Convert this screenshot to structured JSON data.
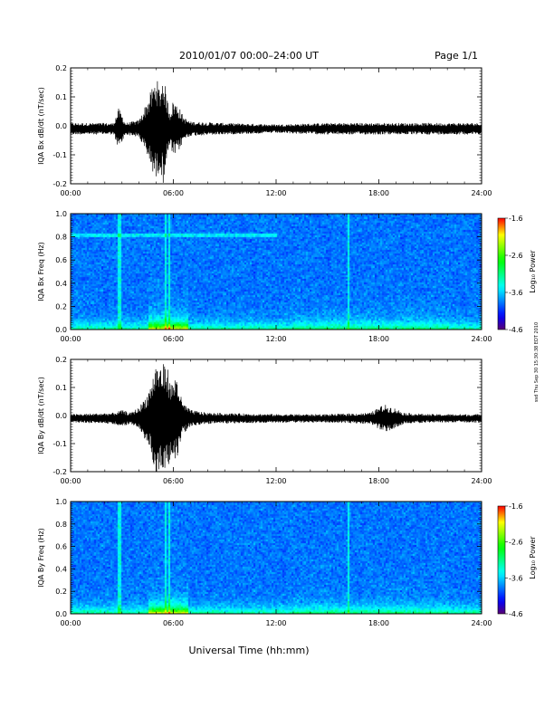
{
  "header": {
    "title": "2010/01/07  00:00–24:00 UT",
    "page": "Page 1/1"
  },
  "side_note": "ssd Thu Sep 30 15:30:38 EDT 2010",
  "xlabel": "Universal Time (hh:mm)",
  "chart_data": [
    {
      "type": "line",
      "panel": "Bx waveform",
      "ylabel": "IQA Bx dB/dt (nT/sec)",
      "xlim": [
        0,
        24
      ],
      "ylim": [
        -0.2,
        0.2
      ],
      "yticks": [
        "-0.2",
        "-0.1",
        "0.0",
        "0.1",
        "0.2"
      ],
      "xticks": [
        "00:00",
        "06:00",
        "12:00",
        "18:00",
        "24:00"
      ],
      "baseline": -0.01,
      "series": [
        {
          "envelope_x": [
            0,
            2.5,
            2.8,
            3.0,
            3.2,
            4.0,
            4.5,
            4.8,
            5.0,
            5.2,
            5.4,
            5.6,
            5.8,
            6.0,
            6.3,
            6.6,
            7.0,
            9,
            12,
            15,
            18,
            21,
            24
          ],
          "envelope_amp": [
            0.02,
            0.02,
            0.07,
            0.05,
            0.02,
            0.03,
            0.1,
            0.15,
            0.18,
            0.14,
            0.19,
            0.12,
            0.06,
            0.1,
            0.08,
            0.04,
            0.025,
            0.02,
            0.015,
            0.02,
            0.02,
            0.02,
            0.02
          ]
        }
      ]
    },
    {
      "type": "heatmap",
      "panel": "Bx spectrogram",
      "ylabel": "IQA Bx Freq (Hz)",
      "xlim": [
        0,
        24
      ],
      "ylim": [
        0,
        1.0
      ],
      "yticks": [
        "0.0",
        "0.2",
        "0.4",
        "0.6",
        "0.8",
        "1.0"
      ],
      "xticks": [
        "00:00",
        "06:00",
        "12:00",
        "18:00",
        "24:00"
      ],
      "colorbar": {
        "label": "Log₁₀ Power",
        "ticks": [
          "-1.6",
          "-2.6",
          "-3.6",
          "-4.6"
        ],
        "range": [
          -4.6,
          -1.6
        ]
      },
      "features": {
        "band_freq": 0.82,
        "band_until": 12,
        "spikes_x": [
          2.8,
          5.5,
          5.7,
          16.2
        ],
        "storm_x": [
          4.5,
          6.8
        ]
      }
    },
    {
      "type": "line",
      "panel": "By waveform",
      "ylabel": "IQA By dB/dt (nT/sec)",
      "xlim": [
        0,
        24
      ],
      "ylim": [
        -0.2,
        0.2
      ],
      "yticks": [
        "-0.2",
        "-0.1",
        "0.0",
        "0.1",
        "0.2"
      ],
      "xticks": [
        "00:00",
        "06:00",
        "12:00",
        "18:00",
        "24:00"
      ],
      "baseline": -0.01,
      "series": [
        {
          "envelope_x": [
            0,
            2.5,
            3.0,
            3.5,
            4.0,
            4.5,
            4.8,
            5.0,
            5.3,
            5.6,
            5.9,
            6.2,
            6.5,
            7.0,
            8,
            12,
            15,
            17.5,
            18.3,
            19,
            19.5,
            21,
            24
          ],
          "envelope_amp": [
            0.015,
            0.02,
            0.03,
            0.02,
            0.04,
            0.09,
            0.15,
            0.2,
            0.19,
            0.2,
            0.12,
            0.16,
            0.06,
            0.03,
            0.02,
            0.015,
            0.015,
            0.02,
            0.05,
            0.035,
            0.02,
            0.015,
            0.015
          ]
        }
      ]
    },
    {
      "type": "heatmap",
      "panel": "By spectrogram",
      "ylabel": "IQA By Freq (Hz)",
      "xlim": [
        0,
        24
      ],
      "ylim": [
        0,
        1.0
      ],
      "yticks": [
        "0.0",
        "0.2",
        "0.4",
        "0.6",
        "0.8",
        "1.0"
      ],
      "xticks": [
        "00:00",
        "06:00",
        "12:00",
        "18:00",
        "24:00"
      ],
      "colorbar": {
        "label": "Log₁₀ Power",
        "ticks": [
          "-1.6",
          "-2.6",
          "-3.6",
          "-4.6"
        ],
        "range": [
          -4.6,
          -1.6
        ]
      },
      "features": {
        "band_freq": null,
        "band_until": 0,
        "spikes_x": [
          2.8,
          5.5,
          5.7,
          16.2
        ],
        "storm_x": [
          4.5,
          6.8
        ]
      }
    }
  ]
}
